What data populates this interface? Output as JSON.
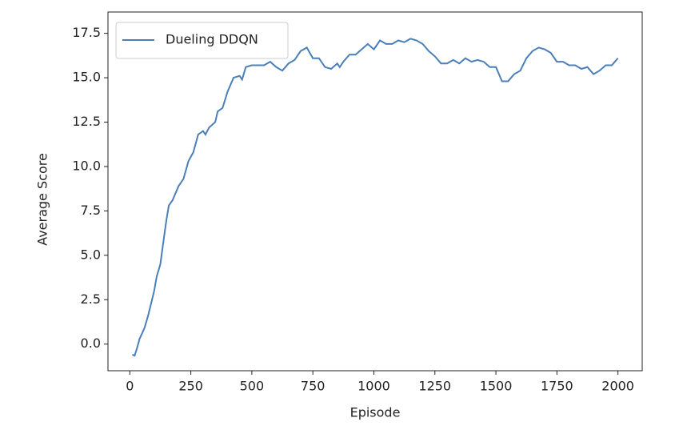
{
  "chart_data": {
    "type": "line",
    "xlabel": "Episode",
    "ylabel": "Average Score",
    "x": [
      10,
      20,
      30,
      40,
      50,
      60,
      75,
      100,
      110,
      125,
      140,
      150,
      160,
      175,
      200,
      220,
      240,
      260,
      280,
      300,
      310,
      325,
      350,
      360,
      380,
      400,
      425,
      450,
      460,
      475,
      500,
      525,
      550,
      575,
      600,
      625,
      650,
      675,
      700,
      725,
      750,
      775,
      800,
      825,
      850,
      860,
      875,
      900,
      925,
      950,
      975,
      1000,
      1025,
      1050,
      1075,
      1100,
      1125,
      1150,
      1175,
      1200,
      1225,
      1250,
      1275,
      1300,
      1325,
      1350,
      1375,
      1400,
      1425,
      1450,
      1475,
      1500,
      1525,
      1550,
      1575,
      1600,
      1625,
      1650,
      1675,
      1700,
      1725,
      1750,
      1775,
      1800,
      1825,
      1850,
      1875,
      1900,
      1925,
      1950,
      1975,
      2000
    ],
    "series": [
      {
        "name": "Dueling DDQN",
        "color": "#4a7fb8",
        "values": [
          -0.6,
          -0.65,
          -0.2,
          0.3,
          0.6,
          0.9,
          1.6,
          3.0,
          3.8,
          4.5,
          6.0,
          7.0,
          7.8,
          8.1,
          8.9,
          9.3,
          10.3,
          10.8,
          11.8,
          12.0,
          11.8,
          12.2,
          12.5,
          13.1,
          13.3,
          14.2,
          15.0,
          15.1,
          14.9,
          15.6,
          15.7,
          15.7,
          15.7,
          15.9,
          15.6,
          15.4,
          15.8,
          16.0,
          16.5,
          16.7,
          16.1,
          16.1,
          15.6,
          15.5,
          15.8,
          15.6,
          15.9,
          16.3,
          16.3,
          16.6,
          16.9,
          16.6,
          17.1,
          16.9,
          16.9,
          17.1,
          17.0,
          17.2,
          17.1,
          16.9,
          16.5,
          16.2,
          15.8,
          15.8,
          16.0,
          15.8,
          16.1,
          15.9,
          16.0,
          15.9,
          15.6,
          15.6,
          14.8,
          14.8,
          15.2,
          15.4,
          16.1,
          16.5,
          16.7,
          16.6,
          16.4,
          15.9,
          15.9,
          15.7,
          15.7,
          15.5,
          15.6,
          15.2,
          15.4,
          15.7,
          15.7,
          16.1
        ]
      }
    ],
    "xlim": [
      -89.5,
      2099.5
    ],
    "xticks": [
      0,
      250,
      500,
      750,
      1000,
      1250,
      1500,
      1750,
      2000
    ],
    "ylim": [
      -1.5,
      18.7
    ],
    "yticks": [
      {
        "value": 0,
        "label": "0.0"
      },
      2.5,
      {
        "value": 5,
        "label": "5.0"
      },
      7.5,
      {
        "value": 10,
        "label": "10.0"
      },
      12.5,
      {
        "value": 15,
        "label": "15.0"
      },
      17.5
    ],
    "legend": "upper left"
  }
}
